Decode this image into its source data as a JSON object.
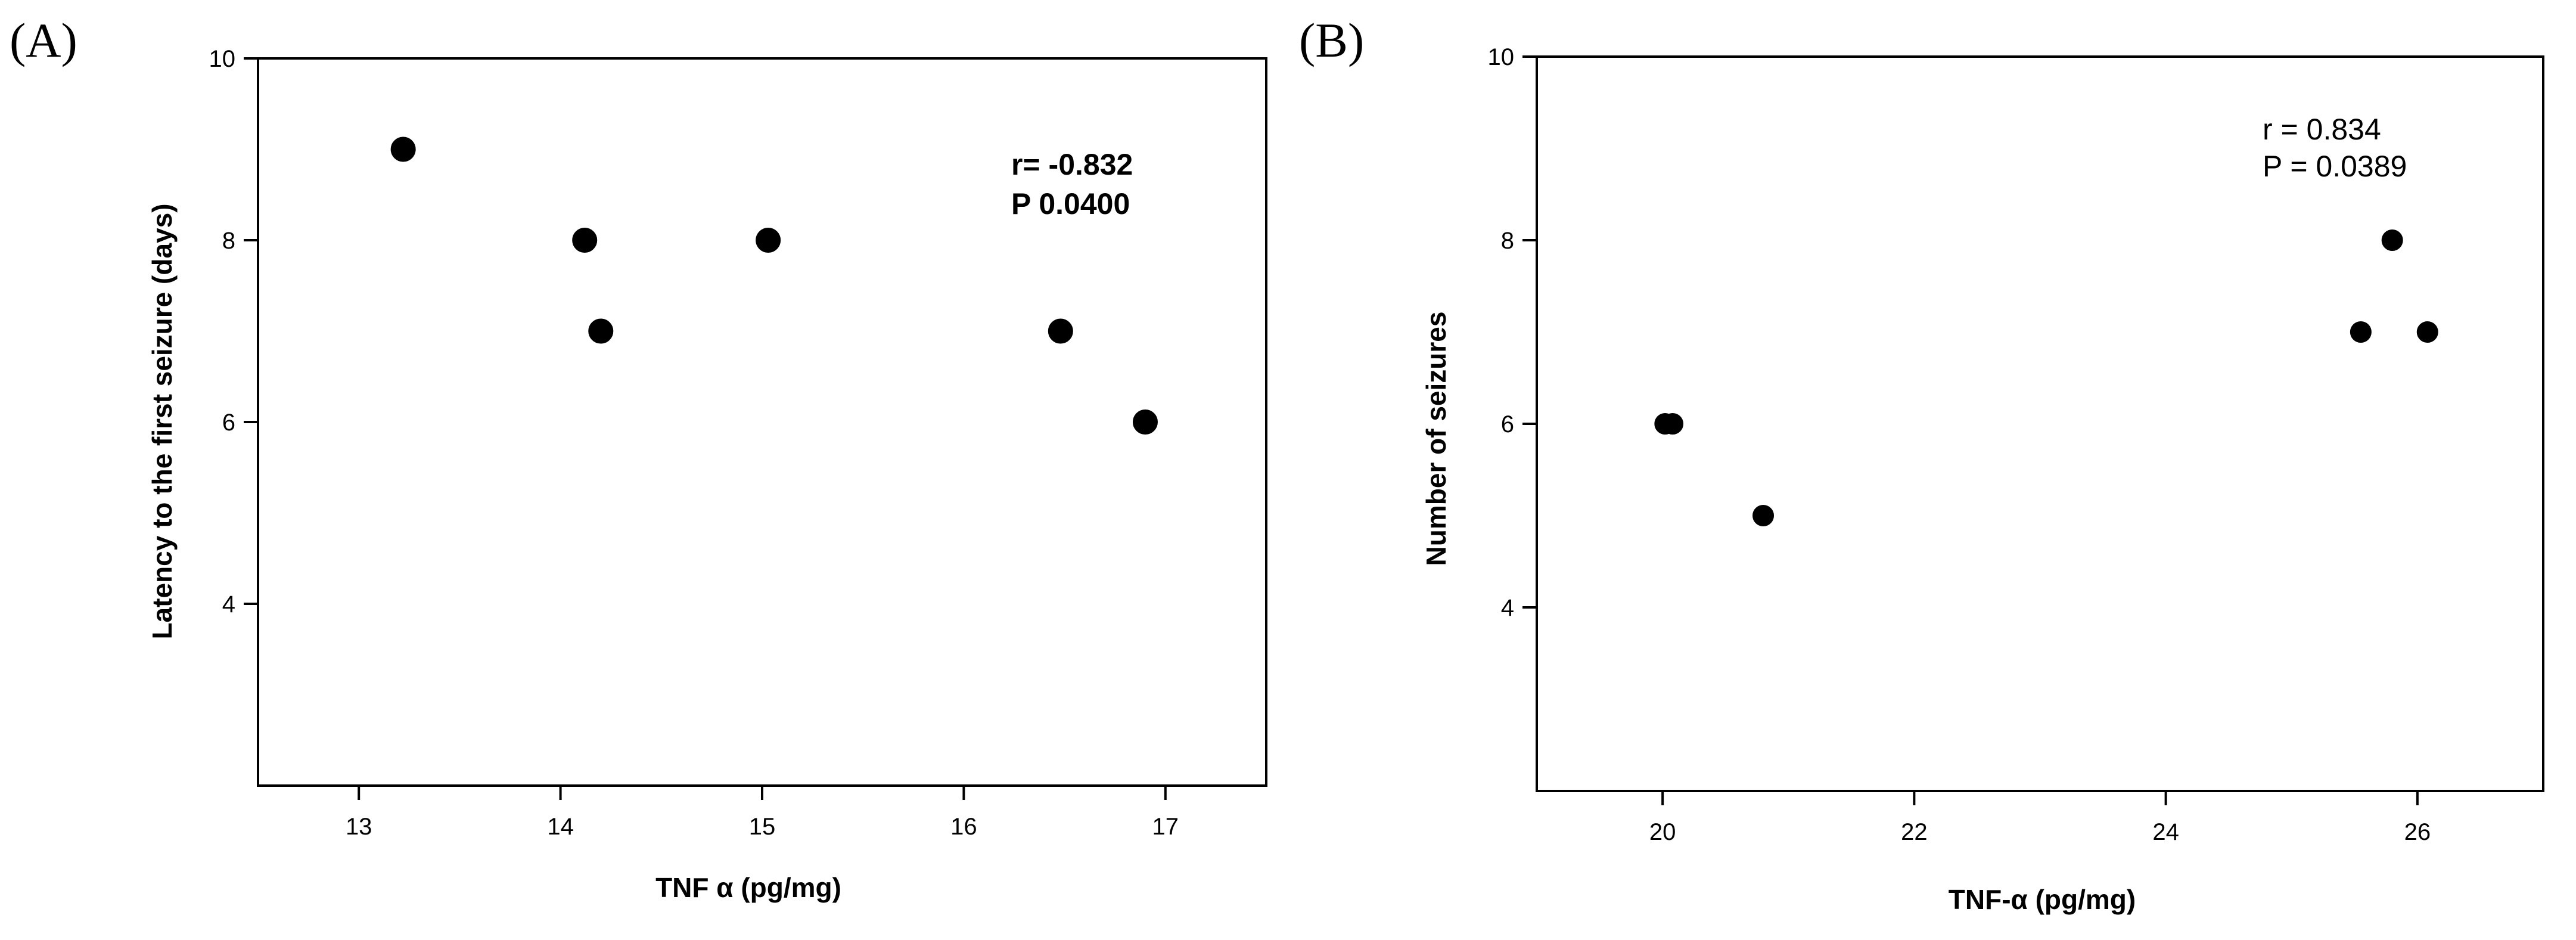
{
  "chart_data": [
    {
      "type": "scatter",
      "panel_label": "(A)",
      "xlabel": "TNF α (pg/mg)",
      "ylabel": "Latency to the first seizure (days)",
      "xlim": [
        12.5,
        17.5
      ],
      "ylim": [
        2.0,
        10.0
      ],
      "xticks": [
        13,
        14,
        15,
        16,
        17
      ],
      "yticks": [
        4,
        6,
        8,
        10
      ],
      "grid": false,
      "annotation": [
        "r= -0.832",
        "P 0.0400"
      ],
      "annotation_style": "bold",
      "points": [
        {
          "x": 13.22,
          "y": 9.0
        },
        {
          "x": 14.12,
          "y": 8.0
        },
        {
          "x": 14.2,
          "y": 7.0
        },
        {
          "x": 15.03,
          "y": 8.0
        },
        {
          "x": 16.48,
          "y": 7.0
        },
        {
          "x": 16.9,
          "y": 6.0
        }
      ]
    },
    {
      "type": "scatter",
      "panel_label": "(B)",
      "xlabel": "TNF-α (pg/mg)",
      "ylabel": "Number of seizures",
      "xlim": [
        19.0,
        27.0
      ],
      "ylim": [
        2.0,
        10.0
      ],
      "xticks": [
        20,
        22,
        24,
        26
      ],
      "yticks": [
        4,
        6,
        8,
        10
      ],
      "grid": false,
      "annotation": [
        "r = 0.834",
        "P = 0.0389"
      ],
      "annotation_style": "plain",
      "points": [
        {
          "x": 20.02,
          "y": 6.0
        },
        {
          "x": 20.08,
          "y": 6.0
        },
        {
          "x": 20.8,
          "y": 5.0
        },
        {
          "x": 25.55,
          "y": 7.0
        },
        {
          "x": 25.8,
          "y": 8.0
        },
        {
          "x": 26.08,
          "y": 7.0
        }
      ]
    }
  ]
}
